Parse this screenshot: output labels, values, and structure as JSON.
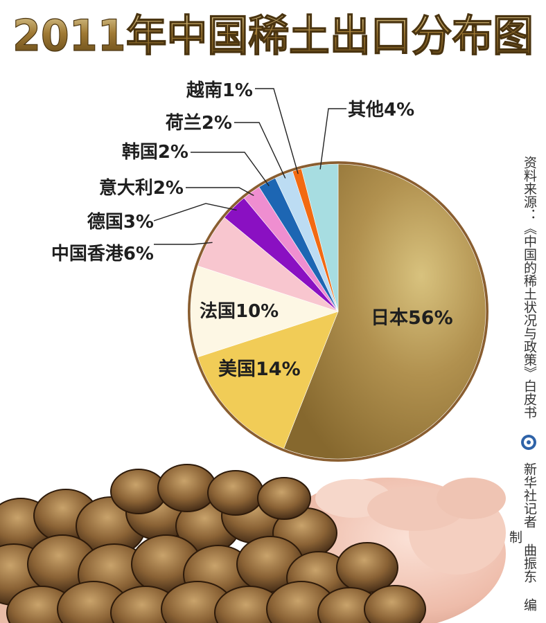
{
  "page": {
    "title": "2011年中国稀土出口分布图",
    "source": "资料来源：《中国的稀土状况与政策》白皮书",
    "credit": "新华社记者 曲振东 编制"
  },
  "colors": {
    "title_fill": "#7a5b1f",
    "title_highlight": "#d8c58e",
    "pie_border": "#8a5e30",
    "leader_line": "#222222"
  },
  "chart_data": {
    "type": "pie",
    "title": "2011年中国稀土出口分布图",
    "unit": "%",
    "slices": [
      {
        "label": "日本",
        "value": 56,
        "text": "日本56%",
        "color": "#a88a4a"
      },
      {
        "label": "美国",
        "value": 14,
        "text": "美国14%",
        "color": "#f1cc57"
      },
      {
        "label": "法国",
        "value": 10,
        "text": "法国10%",
        "color": "#fdf7e4"
      },
      {
        "label": "中国香港",
        "value": 6,
        "text": "中国香港6%",
        "color": "#f8c6cf"
      },
      {
        "label": "德国",
        "value": 3,
        "text": "德国3%",
        "color": "#8a10c2"
      },
      {
        "label": "意大利",
        "value": 2,
        "text": "意大利2%",
        "color": "#ef8ed0"
      },
      {
        "label": "韩国",
        "value": 2,
        "text": "韩国2%",
        "color": "#1d66b3"
      },
      {
        "label": "荷兰",
        "value": 2,
        "text": "荷兰2%",
        "color": "#bcdcf3"
      },
      {
        "label": "越南",
        "value": 1,
        "text": "越南1%",
        "color": "#f26a12"
      },
      {
        "label": "其他",
        "value": 4,
        "text": "其他4%",
        "color": "#a7dde1"
      }
    ]
  }
}
